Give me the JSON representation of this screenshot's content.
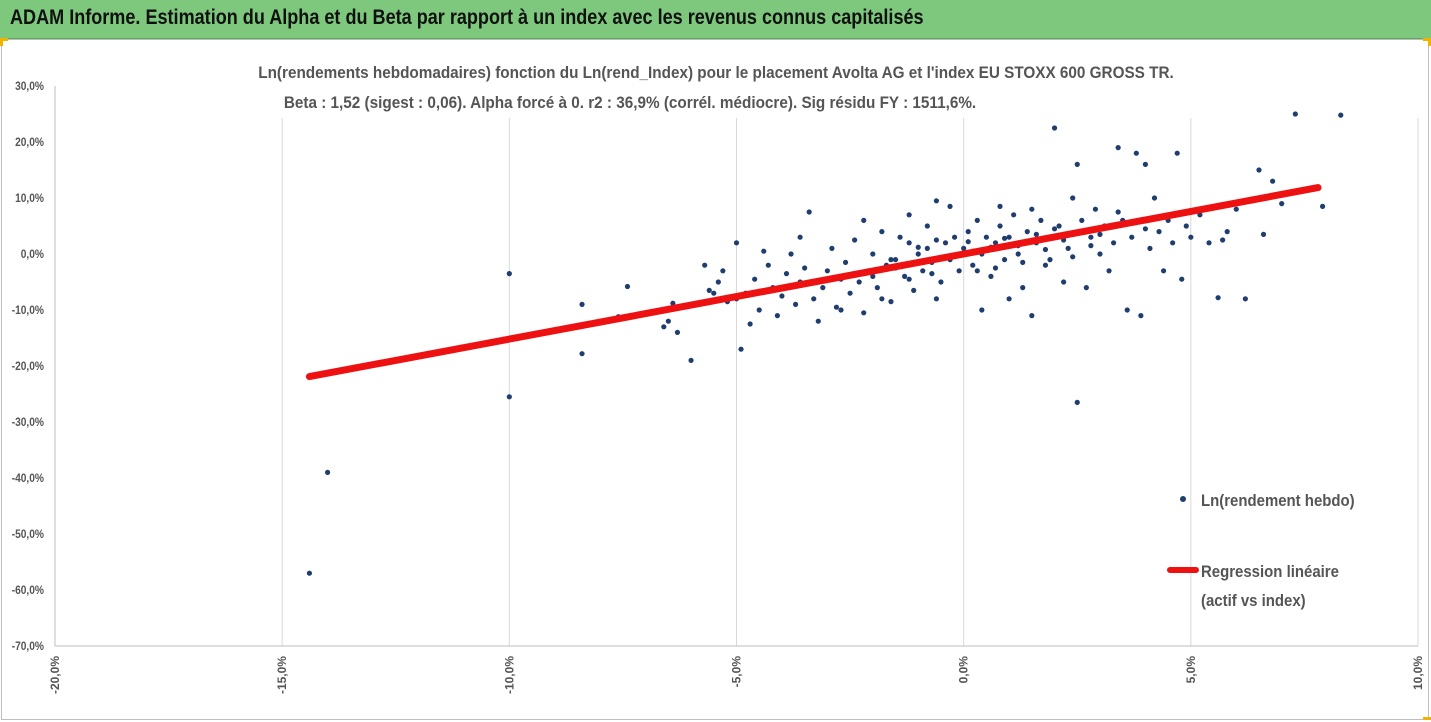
{
  "header": {
    "title": "ADAM Informe. Estimation du Alpha et du Beta par rapport à un index avec les revenus connus capitalisés"
  },
  "colors": {
    "banner": "#7dc87d",
    "points": "#1f3d6e",
    "regression": "#ee1111",
    "grid": "#d9d9d9",
    "accent": "#f0b400"
  },
  "chart_data": {
    "type": "scatter",
    "title_lines": [
      "Ln(rendements hebdomadaires) fonction du Ln(rend_Index) pour le placement Avolta AG et l'index EU STOXX 600 GROSS TR.",
      "Beta : 1,52 (sigest : 0,06). Alpha forcé à 0. r2 : 36,9% (corrél. médiocre). Sig résidu FY : 1511,6%."
    ],
    "xlim": [
      -0.2,
      0.1
    ],
    "ylim": [
      -0.7,
      0.3
    ],
    "x_ticks": [
      -0.2,
      -0.15,
      -0.1,
      -0.05,
      0.0,
      0.05,
      0.1
    ],
    "y_ticks": [
      0.3,
      0.2,
      0.1,
      0.0,
      -0.1,
      -0.2,
      -0.3,
      -0.4,
      -0.5,
      -0.6,
      -0.7
    ],
    "x_tick_labels": [
      "-20,0%",
      "-15,0%",
      "-10,0%",
      "-5,0%",
      "0,0%",
      "5,0%",
      "10,0%"
    ],
    "y_tick_labels": [
      "30,0%",
      "20,0%",
      "10,0%",
      "0,0%",
      "-10,0%",
      "-20,0%",
      "-30,0%",
      "-40,0%",
      "-50,0%",
      "-60,0%",
      "-70,0%"
    ],
    "grid": "vertical",
    "legend_position": "right",
    "legend": [
      {
        "label": "Ln(rendement hebdo)",
        "marker": "point"
      },
      {
        "label_lines": [
          "Regression linéaire",
          "(actif vs index)"
        ],
        "marker": "line"
      }
    ],
    "regression": {
      "beta": 1.52,
      "alpha": 0,
      "x_range": [
        -0.144,
        0.078
      ]
    },
    "series": [
      {
        "name": "Ln(rendement hebdo)",
        "points": [
          [
            -0.144,
            -0.57
          ],
          [
            -0.14,
            -0.39
          ],
          [
            -0.1,
            -0.255
          ],
          [
            -0.1,
            -0.035
          ],
          [
            -0.084,
            -0.09
          ],
          [
            -0.084,
            -0.178
          ],
          [
            -0.076,
            -0.112
          ],
          [
            -0.074,
            -0.058
          ],
          [
            -0.066,
            -0.13
          ],
          [
            -0.065,
            -0.12
          ],
          [
            -0.064,
            -0.088
          ],
          [
            -0.063,
            -0.14
          ],
          [
            -0.06,
            -0.19
          ],
          [
            -0.057,
            -0.02
          ],
          [
            -0.056,
            -0.065
          ],
          [
            -0.055,
            -0.07
          ],
          [
            -0.054,
            -0.05
          ],
          [
            -0.053,
            -0.03
          ],
          [
            -0.052,
            -0.085
          ],
          [
            -0.05,
            0.02
          ],
          [
            -0.049,
            -0.17
          ],
          [
            -0.048,
            -0.07
          ],
          [
            -0.047,
            -0.125
          ],
          [
            -0.046,
            -0.045
          ],
          [
            -0.045,
            -0.1
          ],
          [
            -0.044,
            0.005
          ],
          [
            -0.043,
            -0.02
          ],
          [
            -0.042,
            -0.06
          ],
          [
            -0.041,
            -0.11
          ],
          [
            -0.04,
            -0.075
          ],
          [
            -0.039,
            -0.035
          ],
          [
            -0.038,
            0.0
          ],
          [
            -0.037,
            -0.09
          ],
          [
            -0.036,
            -0.05
          ],
          [
            -0.035,
            -0.025
          ],
          [
            -0.034,
            0.075
          ],
          [
            -0.033,
            -0.08
          ],
          [
            -0.032,
            -0.12
          ],
          [
            -0.031,
            -0.06
          ],
          [
            -0.03,
            -0.03
          ],
          [
            -0.029,
            0.01
          ],
          [
            -0.028,
            -0.095
          ],
          [
            -0.027,
            -0.045
          ],
          [
            -0.026,
            -0.015
          ],
          [
            -0.025,
            -0.07
          ],
          [
            -0.024,
            0.025
          ],
          [
            -0.023,
            -0.05
          ],
          [
            -0.022,
            -0.105
          ],
          [
            -0.021,
            -0.03
          ],
          [
            -0.02,
            0.0
          ],
          [
            -0.019,
            -0.06
          ],
          [
            -0.018,
            0.04
          ],
          [
            -0.017,
            -0.02
          ],
          [
            -0.016,
            -0.085
          ],
          [
            -0.015,
            -0.01
          ],
          [
            -0.014,
            0.03
          ],
          [
            -0.013,
            -0.04
          ],
          [
            -0.012,
            0.02
          ],
          [
            -0.011,
            -0.065
          ],
          [
            -0.01,
            0.0
          ],
          [
            -0.009,
            -0.03
          ],
          [
            -0.008,
            0.05
          ],
          [
            -0.007,
            -0.015
          ],
          [
            -0.006,
            0.095
          ],
          [
            -0.005,
            -0.05
          ],
          [
            -0.004,
            0.02
          ],
          [
            -0.003,
            -0.01
          ],
          [
            -0.002,
            0.03
          ],
          [
            -0.001,
            -0.03
          ],
          [
            0.0,
            0.01
          ],
          [
            0.001,
            0.04
          ],
          [
            0.002,
            -0.02
          ],
          [
            0.003,
            0.06
          ],
          [
            0.004,
            0.0
          ],
          [
            0.005,
            0.03
          ],
          [
            0.006,
            -0.04
          ],
          [
            0.007,
            0.02
          ],
          [
            0.008,
            0.05
          ],
          [
            0.009,
            -0.01
          ],
          [
            0.01,
            0.03
          ],
          [
            0.011,
            0.07
          ],
          [
            0.012,
            0.0
          ],
          [
            0.013,
            -0.06
          ],
          [
            0.014,
            0.04
          ],
          [
            0.015,
            -0.11
          ],
          [
            0.016,
            0.02
          ],
          [
            0.017,
            0.06
          ],
          [
            0.018,
            -0.02
          ],
          [
            0.019,
            0.03
          ],
          [
            0.02,
            0.225
          ],
          [
            0.021,
            0.05
          ],
          [
            0.022,
            -0.05
          ],
          [
            0.023,
            0.01
          ],
          [
            0.024,
            0.1
          ],
          [
            0.025,
            -0.265
          ],
          [
            0.025,
            0.16
          ],
          [
            0.026,
            0.04
          ],
          [
            0.027,
            -0.06
          ],
          [
            0.028,
            0.03
          ],
          [
            0.029,
            0.08
          ],
          [
            0.03,
            0.0
          ],
          [
            0.031,
            0.05
          ],
          [
            0.032,
            -0.03
          ],
          [
            0.033,
            0.02
          ],
          [
            0.034,
            0.19
          ],
          [
            0.035,
            0.06
          ],
          [
            0.036,
            -0.1
          ],
          [
            0.037,
            0.03
          ],
          [
            0.038,
            0.18
          ],
          [
            0.039,
            -0.11
          ],
          [
            0.04,
            0.16
          ],
          [
            0.041,
            0.01
          ],
          [
            0.042,
            0.1
          ],
          [
            0.043,
            0.04
          ],
          [
            0.044,
            -0.03
          ],
          [
            0.045,
            0.06
          ],
          [
            0.046,
            0.02
          ],
          [
            0.047,
            0.18
          ],
          [
            0.048,
            -0.045
          ],
          [
            0.049,
            0.05
          ],
          [
            0.05,
            0.03
          ],
          [
            0.052,
            0.07
          ],
          [
            0.054,
            0.02
          ],
          [
            0.056,
            -0.078
          ],
          [
            0.057,
            0.025
          ],
          [
            0.058,
            0.04
          ],
          [
            0.06,
            0.08
          ],
          [
            0.062,
            -0.08
          ],
          [
            0.065,
            0.15
          ],
          [
            0.066,
            0.035
          ],
          [
            0.068,
            0.13
          ],
          [
            0.07,
            0.09
          ],
          [
            0.073,
            0.25
          ],
          [
            0.083,
            0.248
          ],
          [
            0.078,
            0.12
          ],
          [
            0.079,
            0.085
          ],
          [
            -0.05,
            -0.08
          ],
          [
            -0.027,
            -0.1
          ],
          [
            -0.018,
            -0.08
          ],
          [
            -0.006,
            -0.08
          ],
          [
            0.004,
            -0.1
          ],
          [
            0.01,
            -0.08
          ],
          [
            -0.036,
            0.03
          ],
          [
            -0.022,
            0.06
          ],
          [
            -0.012,
            0.07
          ],
          [
            -0.003,
            0.085
          ],
          [
            0.008,
            0.085
          ],
          [
            0.015,
            0.08
          ],
          [
            -0.008,
            0.01
          ],
          [
            -0.004,
            -0.005
          ],
          [
            0.002,
            0.005
          ],
          [
            0.006,
            0.012
          ],
          [
            0.012,
            0.015
          ],
          [
            0.018,
            0.008
          ],
          [
            0.022,
            0.025
          ],
          [
            0.028,
            0.015
          ],
          [
            -0.015,
            -0.025
          ],
          [
            -0.01,
            0.012
          ],
          [
            -0.006,
            0.025
          ],
          [
            0.001,
            0.022
          ],
          [
            0.009,
            0.028
          ],
          [
            0.016,
            0.035
          ],
          [
            0.02,
            0.045
          ],
          [
            0.026,
            0.06
          ],
          [
            -0.02,
            -0.04
          ],
          [
            -0.016,
            -0.01
          ],
          [
            -0.012,
            -0.045
          ],
          [
            -0.007,
            -0.035
          ],
          [
            0.003,
            -0.03
          ],
          [
            0.007,
            -0.025
          ],
          [
            0.013,
            -0.015
          ],
          [
            0.019,
            -0.01
          ],
          [
            0.024,
            -0.005
          ],
          [
            0.03,
            0.035
          ],
          [
            0.034,
            0.075
          ],
          [
            0.04,
            0.045
          ]
        ]
      }
    ]
  }
}
